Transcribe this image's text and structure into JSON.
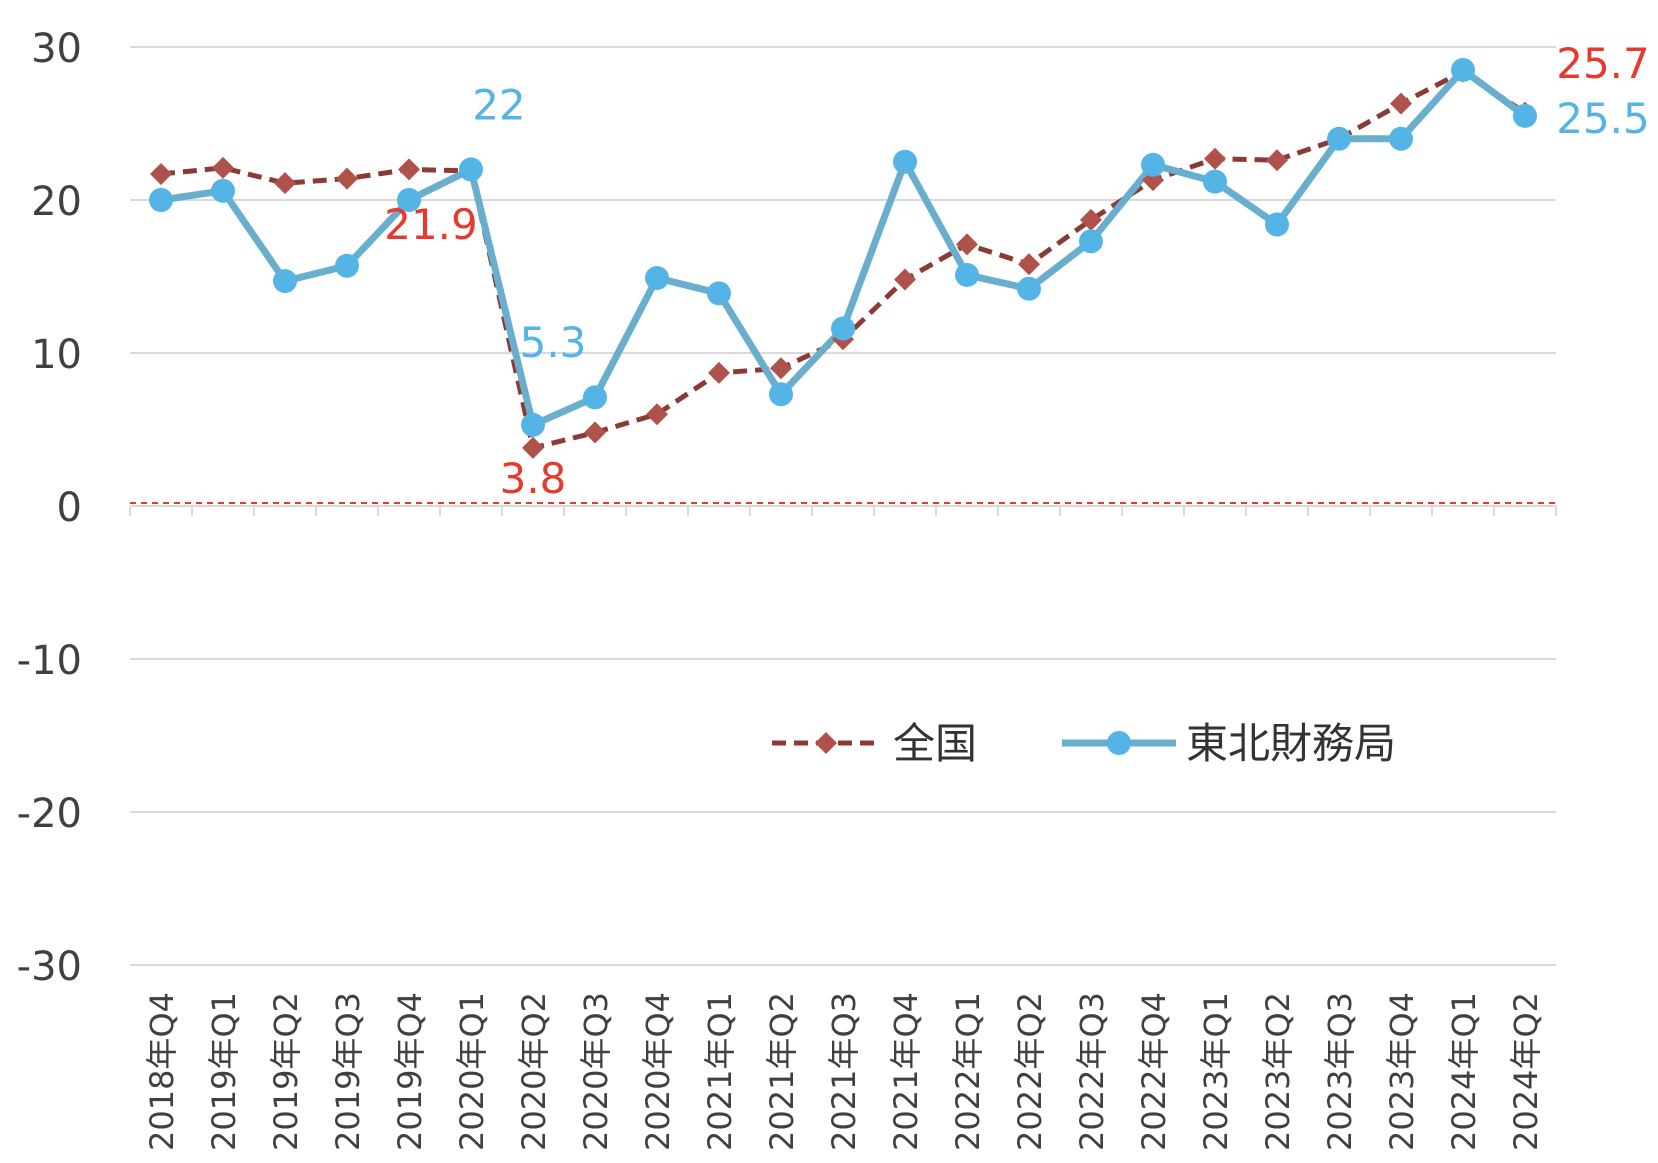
{
  "chart_data": {
    "type": "line",
    "categories": [
      "2018年Q4",
      "2019年Q1",
      "2019年Q2",
      "2019年Q3",
      "2019年Q4",
      "2020年Q1",
      "2020年Q2",
      "2020年Q3",
      "2020年Q4",
      "2021年Q1",
      "2021年Q2",
      "2021年Q3",
      "2021年Q4",
      "2022年Q1",
      "2022年Q2",
      "2022年Q3",
      "2022年Q4",
      "2023年Q1",
      "2023年Q2",
      "2023年Q3",
      "2023年Q4",
      "2024年Q1",
      "2024年Q2"
    ],
    "series": [
      {
        "name": "全国",
        "color": "#b0524c",
        "line_color": "#8b3a36",
        "style": "dashed",
        "marker": "diamond",
        "values": [
          21.7,
          22.1,
          21.1,
          21.4,
          22.0,
          21.9,
          3.8,
          4.8,
          6.0,
          8.7,
          9.0,
          10.9,
          14.8,
          17.1,
          15.8,
          18.7,
          21.3,
          22.7,
          22.6,
          24.0,
          26.3,
          28.4,
          25.7
        ]
      },
      {
        "name": "東北財務局",
        "color": "#54b4e6",
        "line_color": "#6aaecd",
        "style": "solid",
        "marker": "circle",
        "values": [
          20.0,
          20.6,
          14.7,
          15.7,
          20.0,
          22.0,
          5.3,
          7.1,
          14.9,
          13.9,
          7.3,
          11.6,
          22.5,
          15.1,
          14.2,
          17.3,
          22.3,
          21.2,
          18.4,
          24.0,
          24.0,
          28.5,
          25.5
        ]
      }
    ],
    "data_labels": [
      {
        "series": "全国",
        "index": 5,
        "text": "21.9"
      },
      {
        "series": "全国",
        "index": 6,
        "text": "3.8"
      },
      {
        "series": "全国",
        "index": 22,
        "text": "25.7"
      },
      {
        "series": "東北財務局",
        "index": 5,
        "text": "22"
      },
      {
        "series": "東北財務局",
        "index": 6,
        "text": "5.3"
      },
      {
        "series": "東北財務局",
        "index": 22,
        "text": "25.5"
      }
    ],
    "ylim": [
      -30,
      30
    ],
    "y_ticks": [
      "30",
      "20",
      "10",
      "0",
      "-10",
      "-20",
      "-30"
    ],
    "y_tick_values": [
      30,
      20,
      10,
      0,
      -10,
      -20,
      -30
    ],
    "grid": true,
    "zero_line": {
      "style": "dashed",
      "color": "#e8392f"
    },
    "legend_position": "lower-center",
    "title": "",
    "xlabel": "",
    "ylabel": ""
  }
}
